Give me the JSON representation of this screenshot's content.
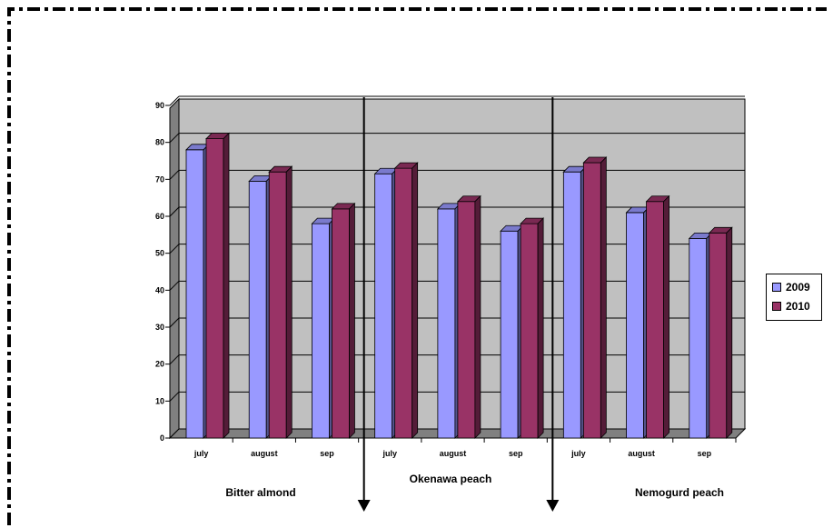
{
  "chart_data": {
    "type": "bar",
    "groups": [
      {
        "name": "Bitter almond",
        "categories": [
          "july",
          "august",
          "sep"
        ]
      },
      {
        "name": "Okenawa peach",
        "categories": [
          "july",
          "august",
          "sep"
        ]
      },
      {
        "name": "Nemogurd peach",
        "categories": [
          "july",
          "august",
          "sep"
        ]
      }
    ],
    "series": [
      {
        "name": "2009",
        "color": "#9999ff",
        "values": [
          78,
          69.5,
          58,
          71.5,
          62,
          56,
          72,
          61,
          54
        ]
      },
      {
        "name": "2010",
        "color": "#993366",
        "values": [
          81,
          72,
          62,
          73,
          64,
          58,
          74.5,
          64,
          55.5
        ]
      }
    ],
    "ylim": [
      0,
      90
    ],
    "yticks": [
      "0",
      "10",
      "20",
      "30",
      "40",
      "50",
      "60",
      "70",
      "80",
      "90"
    ],
    "grid": true,
    "legend_position": "right",
    "plot_background": "#c0c0c0"
  }
}
